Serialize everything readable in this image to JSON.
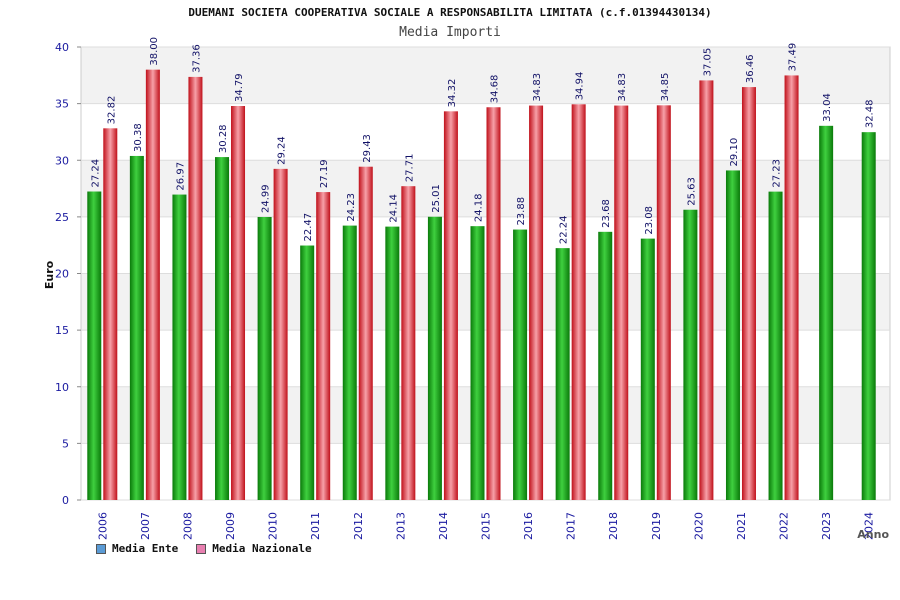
{
  "colors": {
    "ente": "#1aa01a",
    "nazionale": "#e0202a",
    "legend_ente": "#5b9bd5",
    "legend_nazionale": "#e87fb0",
    "axis_text": "#1a1aa0",
    "value_text": "#111166",
    "band": "#f2f2f2"
  },
  "chart_data": {
    "type": "bar",
    "title": "DUEMANI SOCIETA COOPERATIVA SOCIALE A RESPONSABILITA LIMITATA (c.f.01394430134)",
    "subtitle": "Media Importi",
    "xlabel": "Anno",
    "ylabel": "Euro",
    "ylim": [
      0,
      40
    ],
    "yticks": [
      0,
      5,
      10,
      15,
      20,
      25,
      30,
      35,
      40
    ],
    "grid": true,
    "legend_position": "bottom-left",
    "categories": [
      "2006",
      "2007",
      "2008",
      "2009",
      "2010",
      "2011",
      "2012",
      "2013",
      "2014",
      "2015",
      "2016",
      "2017",
      "2018",
      "2019",
      "2020",
      "2021",
      "2022",
      "2023",
      "2024"
    ],
    "series": [
      {
        "name": "Media Ente",
        "values": [
          27.24,
          30.38,
          26.97,
          30.28,
          24.99,
          22.47,
          24.23,
          24.14,
          25.01,
          24.18,
          23.88,
          22.24,
          23.68,
          23.08,
          25.63,
          29.1,
          27.23,
          33.04,
          32.48
        ],
        "labels": [
          "27.24",
          "30.38",
          "26.97",
          "30.28",
          "24.99",
          "22.47",
          "24.23",
          "24.14",
          "25.01",
          "24.18",
          "23.88",
          "22.24",
          "23.68",
          "23.08",
          "25.63",
          "29.10",
          "27.23",
          "33.04",
          "32.48"
        ]
      },
      {
        "name": "Media Nazionale",
        "values": [
          32.82,
          38.0,
          37.36,
          34.79,
          29.24,
          27.19,
          29.43,
          27.71,
          34.32,
          34.68,
          34.83,
          34.94,
          34.83,
          34.85,
          37.05,
          36.46,
          37.49,
          null,
          null
        ],
        "labels": [
          "32.82",
          "38.00",
          "37.36",
          "34.79",
          "29.24",
          "27.19",
          "29.43",
          "27.71",
          "34.32",
          "34.68",
          "34.83",
          "34.94",
          "34.83",
          "34.85",
          "37.05",
          "36.46",
          "37.49",
          "",
          ""
        ]
      }
    ]
  }
}
